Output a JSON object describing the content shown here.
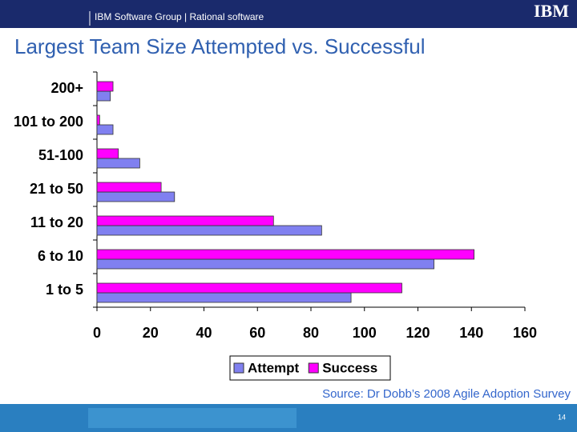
{
  "header": {
    "text": "IBM Software Group | Rational software",
    "logo": "IBM"
  },
  "chart_data": {
    "type": "bar",
    "orientation": "horizontal",
    "title": "Largest Team Size Attempted vs. Successful",
    "categories": [
      "200+",
      "101 to 200",
      "51-100",
      "21 to 50",
      "11 to 20",
      "6 to 10",
      "1 to 5"
    ],
    "series": [
      {
        "name": "Attempt",
        "color": "#8080f0",
        "values": [
          5,
          6,
          16,
          29,
          84,
          126,
          95
        ]
      },
      {
        "name": "Success",
        "color": "#ff00ff",
        "values": [
          6,
          1,
          8,
          24,
          66,
          141,
          114
        ]
      }
    ],
    "xlim": [
      0,
      160
    ],
    "xticks": [
      0,
      20,
      40,
      60,
      80,
      100,
      120,
      140,
      160
    ],
    "grid": false,
    "legend": "bottom"
  },
  "footer": {
    "source": "Source: Dr Dobb’s 2008 Agile Adoption Survey",
    "page": "14"
  }
}
